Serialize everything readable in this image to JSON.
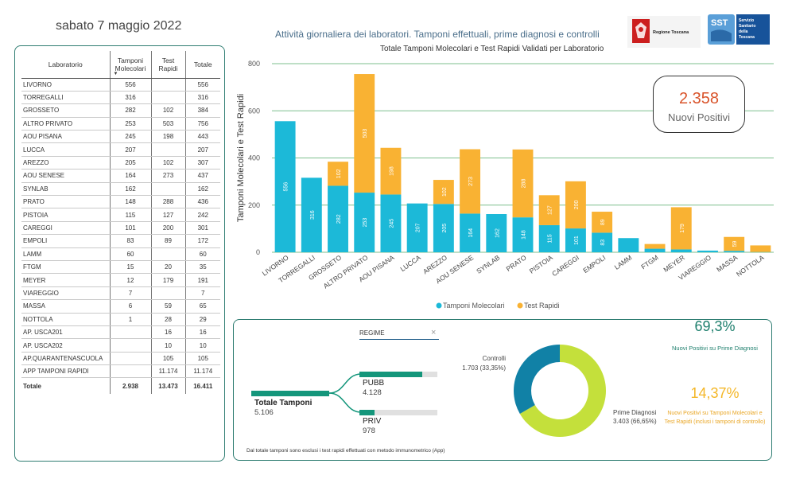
{
  "header": {
    "date": "sabato 7 maggio 2022",
    "main_title": "Attività giornaliera dei laboratori. Tamponi effettuali, prime diagnosi e controlli",
    "region_logo_text": "Regione Toscana",
    "sst_logo_text": "SST",
    "sst_logo_subtitle_1": "Servizio",
    "sst_logo_subtitle_2": "Sanitario",
    "sst_logo_subtitle_3": "della",
    "sst_logo_subtitle_4": "Toscana"
  },
  "table": {
    "col_lab": "Laboratorio",
    "col_mol_1": "Tamponi",
    "col_mol_2": "Molecolari",
    "col_rapid_1": "Test",
    "col_rapid_2": "Rapidi",
    "col_total": "Totale",
    "rows": [
      {
        "name": "LIVORNO",
        "mol": "556",
        "rapid": "",
        "total": "556"
      },
      {
        "name": "TORREGALLI",
        "mol": "316",
        "rapid": "",
        "total": "316"
      },
      {
        "name": "GROSSETO",
        "mol": "282",
        "rapid": "102",
        "total": "384"
      },
      {
        "name": "ALTRO PRIVATO",
        "mol": "253",
        "rapid": "503",
        "total": "756"
      },
      {
        "name": "AOU PISANA",
        "mol": "245",
        "rapid": "198",
        "total": "443"
      },
      {
        "name": "LUCCA",
        "mol": "207",
        "rapid": "",
        "total": "207"
      },
      {
        "name": "AREZZO",
        "mol": "205",
        "rapid": "102",
        "total": "307"
      },
      {
        "name": "AOU SENESE",
        "mol": "164",
        "rapid": "273",
        "total": "437"
      },
      {
        "name": "SYNLAB",
        "mol": "162",
        "rapid": "",
        "total": "162"
      },
      {
        "name": "PRATO",
        "mol": "148",
        "rapid": "288",
        "total": "436"
      },
      {
        "name": "PISTOIA",
        "mol": "115",
        "rapid": "127",
        "total": "242"
      },
      {
        "name": "CAREGGI",
        "mol": "101",
        "rapid": "200",
        "total": "301"
      },
      {
        "name": "EMPOLI",
        "mol": "83",
        "rapid": "89",
        "total": "172"
      },
      {
        "name": "LAMM",
        "mol": "60",
        "rapid": "",
        "total": "60"
      },
      {
        "name": "FTGM",
        "mol": "15",
        "rapid": "20",
        "total": "35"
      },
      {
        "name": "MEYER",
        "mol": "12",
        "rapid": "179",
        "total": "191"
      },
      {
        "name": "VIAREGGIO",
        "mol": "7",
        "rapid": "",
        "total": "7"
      },
      {
        "name": "MASSA",
        "mol": "6",
        "rapid": "59",
        "total": "65"
      },
      {
        "name": "NOTTOLA",
        "mol": "1",
        "rapid": "28",
        "total": "29"
      },
      {
        "name": "AP. USCA201",
        "mol": "",
        "rapid": "16",
        "total": "16"
      },
      {
        "name": "AP. USCA202",
        "mol": "",
        "rapid": "10",
        "total": "10"
      },
      {
        "name": "AP.QUARANTENASCUOLA",
        "mol": "",
        "rapid": "105",
        "total": "105"
      },
      {
        "name": "APP TAMPONI RAPIDI",
        "mol": "",
        "rapid": "11.174",
        "total": "11.174"
      }
    ],
    "total_row": {
      "name": "Totale",
      "mol": "2.938",
      "rapid": "13.473",
      "total": "16.411"
    }
  },
  "kpi": {
    "value": "2.358",
    "label": "Nuovi Positivi"
  },
  "chart_data": {
    "type": "bar",
    "stacked": true,
    "title": "Totale Tamponi Molecolari e Test Rapidi Validati per Laboratorio",
    "ylabel": "Tamponi Molecolari e Test Rapidi",
    "xlabel": "",
    "ylim": [
      0,
      800
    ],
    "yticks": [
      0,
      200,
      400,
      600,
      800
    ],
    "grid": true,
    "legend_position": "bottom-center",
    "categories": [
      "LIVORNO",
      "TORREGALLI",
      "GROSSETO",
      "ALTRO PRIVATO",
      "AOU PISANA",
      "LUCCA",
      "AREZZO",
      "AOU SENESE",
      "SYNLAB",
      "PRATO",
      "PISTOIA",
      "CAREGGI",
      "EMPOLI",
      "LAMM",
      "FTGM",
      "MEYER",
      "VIAREGGIO",
      "MASSA",
      "NOTTOLA"
    ],
    "series": [
      {
        "name": "Tamponi Molecolari",
        "color": "#1cb9d8",
        "values": [
          556,
          316,
          282,
          253,
          245,
          207,
          205,
          164,
          162,
          148,
          115,
          101,
          83,
          60,
          15,
          12,
          7,
          6,
          1
        ]
      },
      {
        "name": "Test Rapidi",
        "color": "#f9b233",
        "values": [
          0,
          0,
          102,
          503,
          198,
          0,
          102,
          273,
          0,
          288,
          127,
          200,
          89,
          0,
          20,
          179,
          0,
          59,
          28
        ]
      }
    ]
  },
  "bottom": {
    "filter_label": "REGIME",
    "tree_root_label": "Totale Tamponi",
    "tree_root_value": "5.106",
    "tree_pubb_label": "PUBB",
    "tree_pubb_value": "4.128",
    "tree_pubb_share": 0.808,
    "tree_priv_label": "PRIV",
    "tree_priv_value": "978",
    "tree_priv_share": 0.192,
    "note": "Dal totale tamponi sono esclusi i test rapidi effettuati con metodo immunometrico (App)",
    "donut": {
      "controlli_label": "Controlli",
      "controlli_value": "1.703 (33,35%)",
      "controlli_pct": 33.35,
      "controlli_color": "#1181a6",
      "prime_label": "Prime Diagnosi",
      "prime_value": "3.403 (66,65%)",
      "prime_pct": 66.65,
      "prime_color": "#c4e03b"
    },
    "pct1_value": "69,3%",
    "pct1_label": "Nuovi Positivi su Prime Diagnosi",
    "pct2_value": "14,37%",
    "pct2_label": "Nuovi Positivi su Tamponi Molecolari e Test Rapidi (inclusi i tamponi di controllo)"
  }
}
